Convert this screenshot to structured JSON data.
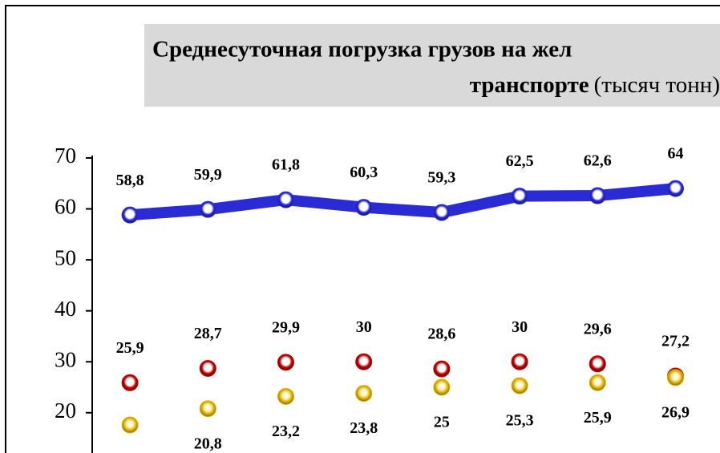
{
  "chart_data": {
    "type": "line",
    "title": "Среднесуточная погрузка грузов на жел",
    "subtitle": "транспорте",
    "unit": "(тысяч тонн)",
    "categories": [
      null,
      null,
      null,
      null,
      null,
      null,
      null,
      null
    ],
    "ylim": [
      12.1,
      70.5
    ],
    "yticks": [
      20,
      30,
      40,
      50,
      60,
      70
    ],
    "series": [
      {
        "color": "#2b2bd6",
        "values": [
          58.8,
          59.9,
          61.8,
          60.3,
          59.3,
          62.5,
          62.6,
          64
        ],
        "value_labels": [
          "58,8",
          "59,9",
          "61,8",
          "60,3",
          "59,3",
          "62,5",
          "62,6",
          "64"
        ],
        "label_position": "above"
      },
      {
        "color": "#c00000",
        "values": [
          25.9,
          28.7,
          29.9,
          30,
          28.6,
          30,
          29.6,
          27.2
        ],
        "value_labels": [
          "25,9",
          "28,7",
          "29,9",
          "30",
          "28,6",
          "30",
          "29,6",
          "27,2"
        ],
        "label_position": "above"
      },
      {
        "color": "#e0b000",
        "values": [
          17.6,
          20.8,
          23.2,
          23.8,
          25,
          25.3,
          25.9,
          26.9
        ],
        "value_labels": [
          null,
          "20,8",
          "23,2",
          "23,8",
          "25",
          "25,3",
          "25,9",
          "26,9"
        ],
        "label_position": "below"
      }
    ]
  }
}
